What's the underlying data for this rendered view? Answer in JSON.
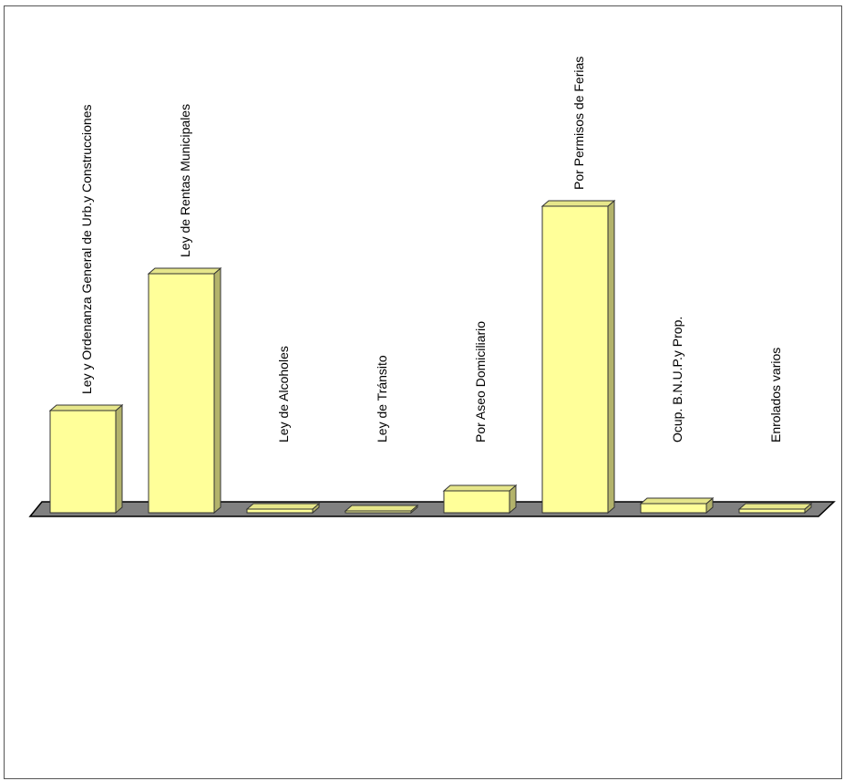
{
  "chart_data": {
    "type": "bar",
    "style": "3d",
    "categories": [
      "Ley y Ordenanza General de Urb.y Construcciones",
      "Ley de Rentas Municipales",
      "Ley de Alcoholes",
      "Ley de Tránsito",
      "Por Aseo Domiciliario",
      "Por Permisos de Ferias",
      "Ocup. B.N.U.P.y Prop.",
      "Enrolados varios"
    ],
    "values": [
      56,
      131,
      2,
      1,
      12,
      168,
      5,
      2
    ],
    "ylim": [
      0,
      175
    ],
    "title": "",
    "xlabel": "",
    "ylabel": "",
    "grid": false,
    "legend": "none",
    "colors": {
      "bar_front": "#FFFF99",
      "bar_top": "#E6E68A",
      "bar_side": "#B3B36B",
      "bar_stroke": "#333333",
      "floor": "#808080"
    }
  }
}
